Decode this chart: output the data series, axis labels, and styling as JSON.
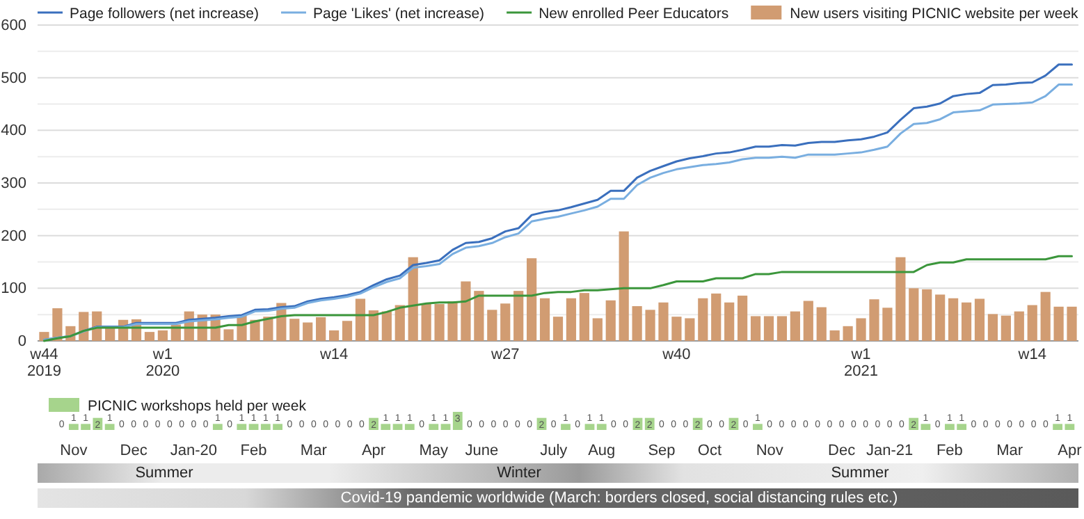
{
  "chart_data": [
    {
      "type": "bar",
      "categories": [
        "w44\n2019",
        null,
        null,
        null,
        null,
        null,
        null,
        null,
        null,
        "w1\n2020",
        null,
        null,
        null,
        null,
        null,
        null,
        null,
        null,
        null,
        null,
        null,
        null,
        "w14",
        null,
        null,
        null,
        null,
        null,
        null,
        null,
        null,
        null,
        null,
        null,
        null,
        "w27",
        null,
        null,
        null,
        null,
        null,
        null,
        null,
        null,
        null,
        null,
        null,
        null,
        "w40",
        null,
        null,
        null,
        null,
        null,
        null,
        null,
        null,
        null,
        null,
        null,
        null,
        null,
        "w1\n2021",
        null,
        null,
        null,
        null,
        null,
        null,
        null,
        null,
        null,
        null,
        null,
        null,
        "w14",
        null,
        null,
        null
      ],
      "series": [
        {
          "type": "line",
          "name": "Page followers (net increase)",
          "color": "#3a6fbd",
          "values": [
            2,
            6,
            9,
            19,
            27,
            27,
            27,
            34,
            34,
            34,
            34,
            40,
            42,
            44,
            47,
            49,
            59,
            60,
            64,
            66,
            75,
            80,
            83,
            87,
            93,
            106,
            117,
            124,
            144,
            148,
            153,
            173,
            186,
            188,
            195,
            208,
            214,
            239,
            245,
            248,
            254,
            261,
            268,
            285,
            285,
            310,
            323,
            332,
            341,
            347,
            351,
            356,
            358,
            363,
            369,
            369,
            372,
            371,
            376,
            378,
            378,
            381,
            383,
            388,
            396,
            420,
            442,
            445,
            451,
            465,
            469,
            471,
            486,
            487,
            490,
            491,
            504,
            525,
            525
          ]
        },
        {
          "type": "line",
          "name": "Page 'Likes' (net increase)",
          "color": "#79aee0",
          "values": [
            2,
            6,
            9,
            18,
            26,
            26,
            26,
            32,
            32,
            32,
            32,
            37,
            39,
            41,
            44,
            46,
            56,
            57,
            61,
            63,
            72,
            77,
            80,
            84,
            90,
            102,
            112,
            119,
            139,
            142,
            146,
            165,
            177,
            180,
            186,
            197,
            204,
            227,
            232,
            236,
            242,
            248,
            255,
            270,
            270,
            296,
            310,
            319,
            326,
            330,
            334,
            336,
            339,
            345,
            348,
            348,
            350,
            348,
            354,
            354,
            354,
            356,
            358,
            363,
            369,
            394,
            412,
            414,
            421,
            434,
            436,
            438,
            449,
            450,
            451,
            453,
            465,
            487,
            487
          ]
        },
        {
          "type": "line",
          "name": "New enrolled Peer Educators",
          "color": "#3b963b",
          "values": [
            0,
            5,
            9,
            19,
            25,
            25,
            25,
            25,
            25,
            25,
            25,
            25,
            25,
            25,
            30,
            30,
            37,
            42,
            47,
            49,
            49,
            49,
            49,
            49,
            49,
            49,
            55,
            63,
            67,
            71,
            73,
            73,
            75,
            86,
            86,
            86,
            86,
            86,
            91,
            93,
            93,
            96,
            96,
            98,
            100,
            100,
            100,
            106,
            113,
            113,
            113,
            119,
            119,
            119,
            127,
            127,
            131,
            131,
            131,
            131,
            131,
            131,
            131,
            131,
            131,
            131,
            131,
            144,
            149,
            149,
            155,
            155,
            155,
            155,
            155,
            155,
            155,
            161,
            161
          ]
        },
        {
          "name": "New users visiting PICNIC website per week",
          "color": "#d19c72",
          "values": [
            17,
            62,
            28,
            55,
            56,
            24,
            40,
            41,
            17,
            20,
            31,
            56,
            50,
            50,
            22,
            49,
            40,
            46,
            72,
            42,
            35,
            45,
            20,
            38,
            80,
            58,
            56,
            68,
            159,
            71,
            70,
            75,
            113,
            95,
            59,
            71,
            95,
            157,
            81,
            46,
            81,
            91,
            43,
            77,
            208,
            66,
            59,
            73,
            46,
            43,
            81,
            90,
            73,
            86,
            47,
            47,
            47,
            56,
            76,
            64,
            20,
            28,
            43,
            79,
            63,
            159,
            100,
            98,
            88,
            81,
            73,
            80,
            51,
            48,
            56,
            68,
            93,
            65,
            65
          ]
        }
      ],
      "ylim": [
        0,
        600
      ],
      "yticks": [
        0,
        {
          "value": 50,
          "label": null
        },
        100,
        {
          "value": 150,
          "label": null
        },
        200,
        {
          "value": 250,
          "label": null
        },
        300,
        {
          "value": 350,
          "label": null
        },
        400,
        {
          "value": 450,
          "label": null
        },
        500,
        {
          "value": 550,
          "label": null
        },
        600
      ],
      "grid": true,
      "legend": "top"
    },
    {
      "type": "bar",
      "categories": [
        null,
        "Nov",
        null,
        null,
        null,
        null,
        "Dec",
        null,
        null,
        null,
        null,
        "Jan-20",
        null,
        null,
        null,
        null,
        "Feb",
        null,
        null,
        null,
        null,
        "Mar",
        null,
        null,
        null,
        null,
        "Apr",
        null,
        null,
        null,
        null,
        "May",
        null,
        null,
        null,
        "June",
        null,
        null,
        null,
        null,
        null,
        "July",
        null,
        null,
        null,
        "Aug",
        null,
        null,
        null,
        null,
        "Sep",
        null,
        null,
        null,
        "Oct",
        null,
        null,
        null,
        null,
        "Nov",
        null,
        null,
        null,
        null,
        null,
        "Dec",
        null,
        null,
        null,
        "Jan-21",
        null,
        null,
        null,
        null,
        "Feb",
        null,
        null,
        null,
        null,
        "Mar",
        null,
        null,
        null,
        null,
        "Apr"
      ],
      "series": [
        {
          "name": "PICNIC workshops held per week",
          "color": "#a6d48c",
          "values": [
            0,
            1,
            1,
            2,
            1,
            0,
            0,
            0,
            0,
            0,
            0,
            0,
            0,
            1,
            0,
            1,
            1,
            1,
            1,
            0,
            0,
            0,
            0,
            0,
            0,
            0,
            2,
            1,
            1,
            1,
            0,
            1,
            1,
            3,
            0,
            0,
            0,
            0,
            0,
            0,
            2,
            0,
            1,
            0,
            1,
            1,
            0,
            0,
            2,
            2,
            0,
            0,
            0,
            2,
            0,
            0,
            2,
            0,
            1,
            0,
            0,
            0,
            0,
            0,
            0,
            0,
            0,
            0,
            0,
            0,
            0,
            2,
            1,
            0,
            1,
            1,
            0,
            0,
            0,
            0,
            0,
            0,
            0,
            1,
            1
          ]
        }
      ],
      "data_labels": true,
      "legend": "top left",
      "annotations": [
        "Summer",
        "Winter",
        "Summer",
        "Covid-19 pandemic worldwide (March: borders closed, social distancing rules etc.)"
      ]
    }
  ]
}
